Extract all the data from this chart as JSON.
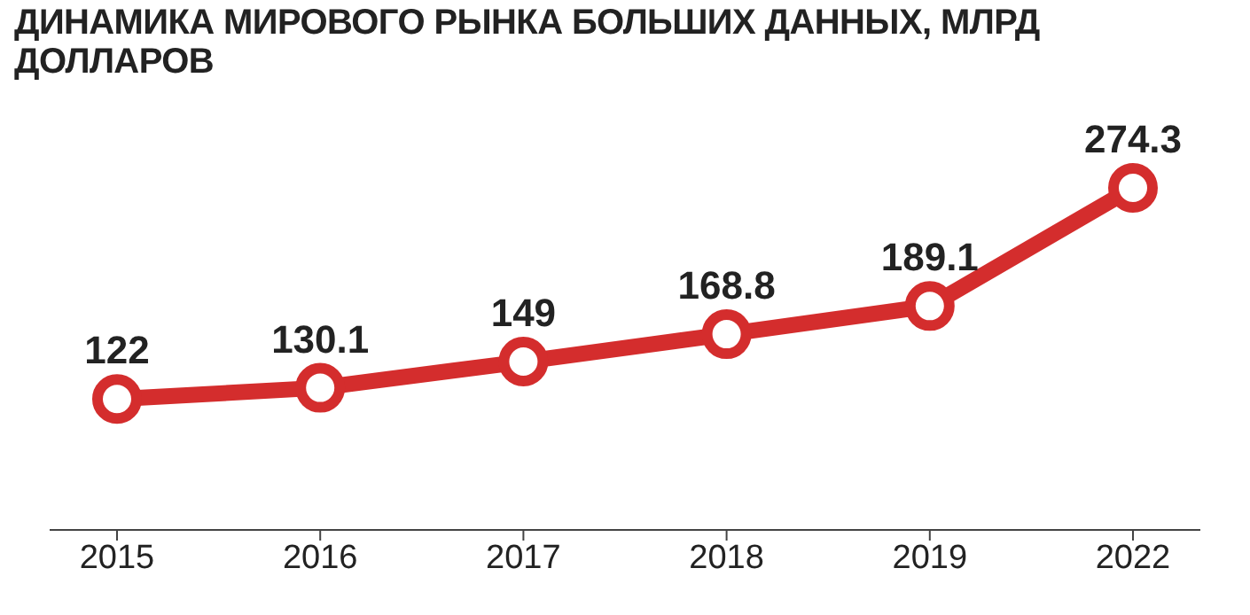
{
  "chart_data": {
    "type": "line",
    "title": "ДИНАМИКА МИРОВОГО РЫНКА БОЛЬШИХ ДАННЫХ, МЛРД ДОЛЛАРОВ",
    "categories": [
      "2015",
      "2016",
      "2017",
      "2018",
      "2019",
      "2022"
    ],
    "series": [
      {
        "color": "#d42d2d",
        "values": [
          122,
          130.1,
          149,
          168.8,
          189.1,
          274.3
        ]
      }
    ],
    "relative": false,
    "data_labels": true,
    "marker": "circle",
    "line_style": "solid",
    "grid": false,
    "legend": false
  }
}
